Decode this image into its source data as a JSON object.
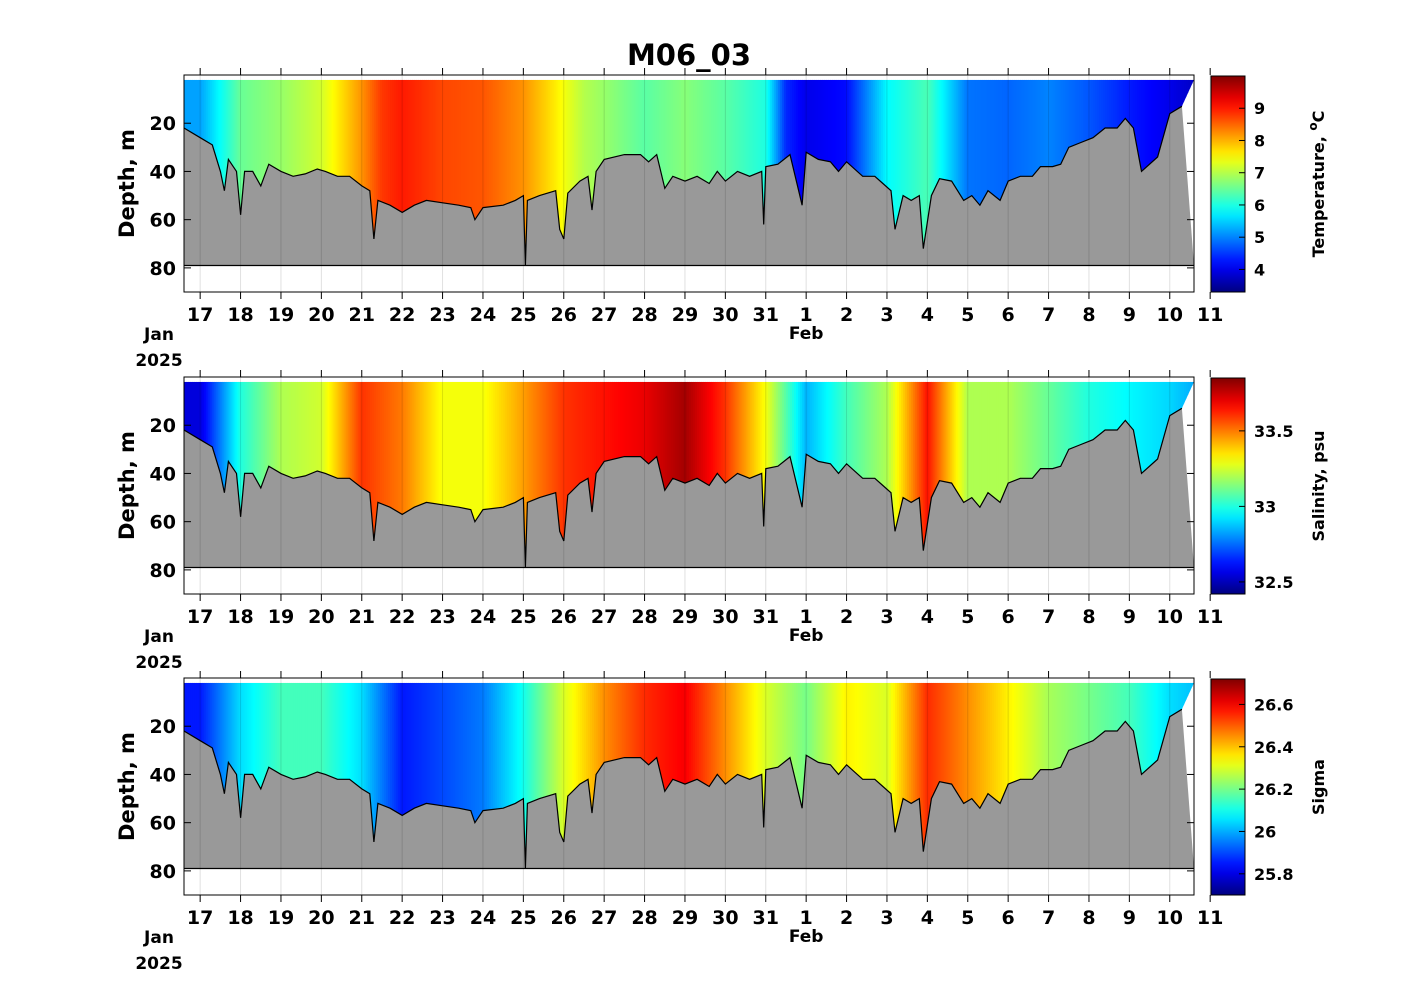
{
  "title": "M06_03",
  "x_axis": {
    "day_ticks": [
      "17",
      "18",
      "19",
      "20",
      "21",
      "22",
      "23",
      "24",
      "25",
      "26",
      "27",
      "28",
      "29",
      "30",
      "31",
      "1",
      "2",
      "3",
      "4",
      "5",
      "6",
      "7",
      "8",
      "9",
      "10",
      "11"
    ],
    "start_label": "Jan",
    "year_label": "2025",
    "feb_label": "Feb"
  },
  "colormap": "jet",
  "chart_data": [
    {
      "type": "heatmap",
      "ylabel": "Depth, m",
      "yticks": [
        "20",
        "40",
        "60",
        "80"
      ],
      "ylim": [
        0,
        90
      ],
      "colorbar": {
        "label": "Temperature, °C",
        "label_main": "Temperature, ",
        "label_unit": "C",
        "label_sup": "o",
        "range": [
          3.3,
          10.0
        ],
        "ticks": [
          "4",
          "5",
          "6",
          "7",
          "8",
          "9"
        ]
      },
      "color_profile_by_day": [
        [
          17,
          5.2
        ],
        [
          18,
          6.5
        ],
        [
          19,
          6.8
        ],
        [
          20,
          7.2
        ],
        [
          21,
          8.2
        ],
        [
          21.5,
          8.8
        ],
        [
          22,
          9.0
        ],
        [
          23,
          8.7
        ],
        [
          24,
          8.6
        ],
        [
          25,
          8.2
        ],
        [
          25.8,
          7.6
        ],
        [
          26.5,
          7.0
        ],
        [
          27,
          6.8
        ],
        [
          28,
          6.4
        ],
        [
          29,
          6.7
        ],
        [
          30,
          6.4
        ],
        [
          31,
          6.0
        ],
        [
          31.5,
          4.4
        ],
        [
          32,
          4.0
        ],
        [
          33,
          4.2
        ],
        [
          34,
          5.8
        ],
        [
          35,
          6.3
        ],
        [
          36,
          4.9
        ],
        [
          37,
          4.8
        ],
        [
          38,
          5.0
        ],
        [
          39,
          4.7
        ],
        [
          40,
          4.3
        ],
        [
          41,
          4.0
        ],
        [
          42,
          3.6
        ]
      ]
    },
    {
      "type": "heatmap",
      "ylabel": "Depth, m",
      "yticks": [
        "20",
        "40",
        "60",
        "80"
      ],
      "ylim": [
        0,
        90
      ],
      "colorbar": {
        "label": "Salinity, psu",
        "range": [
          32.42,
          33.85
        ],
        "ticks": [
          "32.5",
          "33",
          "33.5"
        ]
      },
      "color_profile_by_day": [
        [
          17,
          32.55
        ],
        [
          18,
          33.0
        ],
        [
          19,
          33.2
        ],
        [
          20,
          33.25
        ],
        [
          21,
          33.6
        ],
        [
          22,
          33.5
        ],
        [
          23,
          33.3
        ],
        [
          24,
          33.3
        ],
        [
          25,
          33.45
        ],
        [
          26,
          33.6
        ],
        [
          27,
          33.65
        ],
        [
          28,
          33.7
        ],
        [
          29,
          33.8
        ],
        [
          30,
          33.6
        ],
        [
          31,
          33.3
        ],
        [
          32,
          32.85
        ],
        [
          33,
          33.05
        ],
        [
          34,
          33.2
        ],
        [
          35,
          33.65
        ],
        [
          36,
          33.2
        ],
        [
          37,
          33.2
        ],
        [
          38,
          33.1
        ],
        [
          39,
          33.0
        ],
        [
          40,
          32.95
        ],
        [
          41,
          32.9
        ],
        [
          42,
          32.8
        ]
      ]
    },
    {
      "type": "heatmap",
      "ylabel": "Depth, m",
      "yticks": [
        "20",
        "40",
        "60",
        "80"
      ],
      "ylim": [
        0,
        90
      ],
      "colorbar": {
        "label": "Sigma",
        "range": [
          25.7,
          26.72
        ],
        "ticks": [
          "25.8",
          "26",
          "26.2",
          "26.4",
          "26.6"
        ]
      },
      "color_profile_by_day": [
        [
          17,
          25.85
        ],
        [
          18,
          26.05
        ],
        [
          19,
          26.15
        ],
        [
          20,
          26.15
        ],
        [
          21,
          26.05
        ],
        [
          22,
          25.85
        ],
        [
          23,
          25.9
        ],
        [
          24,
          25.95
        ],
        [
          25,
          26.1
        ],
        [
          26,
          26.3
        ],
        [
          27,
          26.45
        ],
        [
          28,
          26.55
        ],
        [
          29,
          26.6
        ],
        [
          30,
          26.45
        ],
        [
          31,
          26.3
        ],
        [
          32,
          26.2
        ],
        [
          33,
          26.35
        ],
        [
          34,
          26.3
        ],
        [
          35,
          26.55
        ],
        [
          36,
          26.45
        ],
        [
          37,
          26.35
        ],
        [
          38,
          26.25
        ],
        [
          39,
          26.2
        ],
        [
          40,
          26.15
        ],
        [
          41,
          26.05
        ],
        [
          42,
          26.0
        ]
      ]
    }
  ],
  "bottom_depth_profile": [
    [
      16.6,
      22
    ],
    [
      17,
      26
    ],
    [
      17.3,
      29
    ],
    [
      17.5,
      40
    ],
    [
      17.6,
      48
    ],
    [
      17.7,
      35
    ],
    [
      17.9,
      40
    ],
    [
      18,
      58
    ],
    [
      18.1,
      40
    ],
    [
      18.3,
      40
    ],
    [
      18.5,
      46
    ],
    [
      18.7,
      37
    ],
    [
      19,
      40
    ],
    [
      19.3,
      42
    ],
    [
      19.6,
      41
    ],
    [
      19.9,
      39
    ],
    [
      20.1,
      40
    ],
    [
      20.4,
      42
    ],
    [
      20.7,
      42
    ],
    [
      21,
      46
    ],
    [
      21.2,
      48
    ],
    [
      21.3,
      68
    ],
    [
      21.4,
      52
    ],
    [
      21.7,
      54
    ],
    [
      22,
      57
    ],
    [
      22.3,
      54
    ],
    [
      22.6,
      52
    ],
    [
      23,
      53
    ],
    [
      23.4,
      54
    ],
    [
      23.7,
      55
    ],
    [
      23.8,
      60
    ],
    [
      24,
      55
    ],
    [
      24.5,
      54
    ],
    [
      24.8,
      52
    ],
    [
      25,
      50
    ],
    [
      25.05,
      79
    ],
    [
      25.1,
      52
    ],
    [
      25.4,
      50
    ],
    [
      25.8,
      48
    ],
    [
      25.9,
      64
    ],
    [
      26,
      68
    ],
    [
      26.1,
      49
    ],
    [
      26.4,
      44
    ],
    [
      26.6,
      42
    ],
    [
      26.7,
      56
    ],
    [
      26.8,
      40
    ],
    [
      27,
      35
    ],
    [
      27.5,
      33
    ],
    [
      27.9,
      33
    ],
    [
      28.1,
      36
    ],
    [
      28.3,
      33
    ],
    [
      28.5,
      47
    ],
    [
      28.7,
      42
    ],
    [
      29,
      44
    ],
    [
      29.3,
      42
    ],
    [
      29.6,
      45
    ],
    [
      29.8,
      40
    ],
    [
      30,
      44
    ],
    [
      30.3,
      40
    ],
    [
      30.6,
      42
    ],
    [
      30.9,
      40
    ],
    [
      30.95,
      62
    ],
    [
      31,
      38
    ],
    [
      31.3,
      37
    ],
    [
      31.6,
      33
    ],
    [
      31.8,
      47
    ],
    [
      31.9,
      54
    ],
    [
      32,
      32
    ],
    [
      32.3,
      35
    ],
    [
      32.6,
      36
    ],
    [
      32.8,
      40
    ],
    [
      33,
      36
    ],
    [
      33.4,
      42
    ],
    [
      33.7,
      42
    ],
    [
      33.9,
      45
    ],
    [
      34.1,
      48
    ],
    [
      34.2,
      64
    ],
    [
      34.4,
      50
    ],
    [
      34.6,
      52
    ],
    [
      34.8,
      50
    ],
    [
      34.9,
      72
    ],
    [
      35.1,
      50
    ],
    [
      35.3,
      43
    ],
    [
      35.6,
      44
    ],
    [
      35.9,
      52
    ],
    [
      36.1,
      50
    ],
    [
      36.3,
      54
    ],
    [
      36.5,
      48
    ],
    [
      36.8,
      52
    ],
    [
      37,
      44
    ],
    [
      37.3,
      42
    ],
    [
      37.6,
      42
    ],
    [
      37.8,
      38
    ],
    [
      38.1,
      38
    ],
    [
      38.3,
      37
    ],
    [
      38.5,
      30
    ],
    [
      38.8,
      28
    ],
    [
      39.1,
      26
    ],
    [
      39.4,
      22
    ],
    [
      39.7,
      22
    ],
    [
      39.9,
      18
    ],
    [
      40.1,
      22
    ],
    [
      40.3,
      40
    ],
    [
      40.7,
      34
    ],
    [
      41,
      16
    ],
    [
      41.3,
      13
    ]
  ]
}
